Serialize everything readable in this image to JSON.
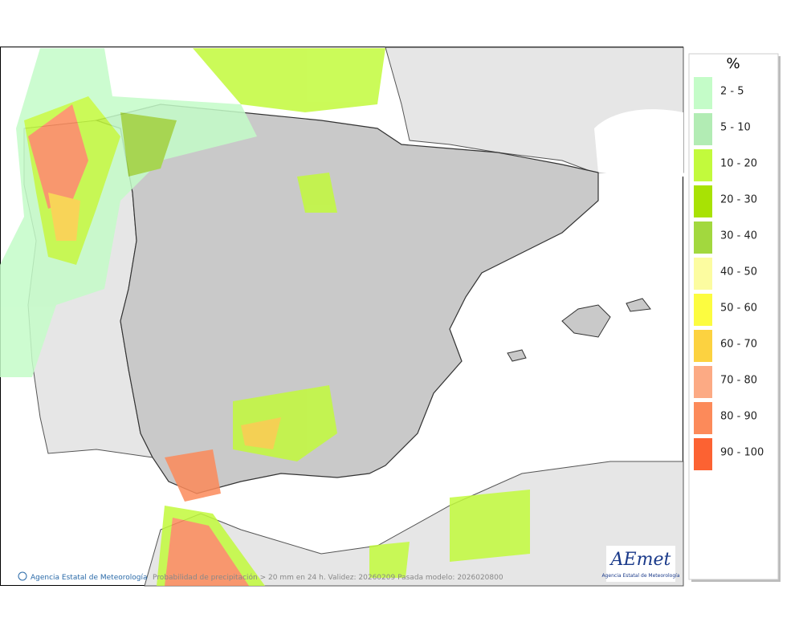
{
  "map": {
    "credit": "Agencia Estatal de Meteorología",
    "caption": "Probabilidad de precipitación > 20 mm en 24 h. Validez: 20260209 Pasada modelo: 2026020800"
  },
  "legend": {
    "title": "%",
    "items": [
      {
        "label": "2 - 5",
        "color": "#c4fcc8"
      },
      {
        "label": "5 - 10",
        "color": "#b2ecb4"
      },
      {
        "label": "10 - 20",
        "color": "#c2fa3c"
      },
      {
        "label": "20 - 30",
        "color": "#a8e204"
      },
      {
        "label": "30 - 40",
        "color": "#a2d83e"
      },
      {
        "label": "40 - 50",
        "color": "#fcfca0"
      },
      {
        "label": "50 - 60",
        "color": "#fcfc40"
      },
      {
        "label": "60 - 70",
        "color": "#fcd240"
      },
      {
        "label": "70 - 80",
        "color": "#fcaa84"
      },
      {
        "label": "80 - 90",
        "color": "#fc8a5a"
      },
      {
        "label": "90 - 100",
        "color": "#fc6232"
      }
    ]
  },
  "logo": {
    "text": "AEmet",
    "subtitle": "Agencia Estatal de Meteorología"
  }
}
